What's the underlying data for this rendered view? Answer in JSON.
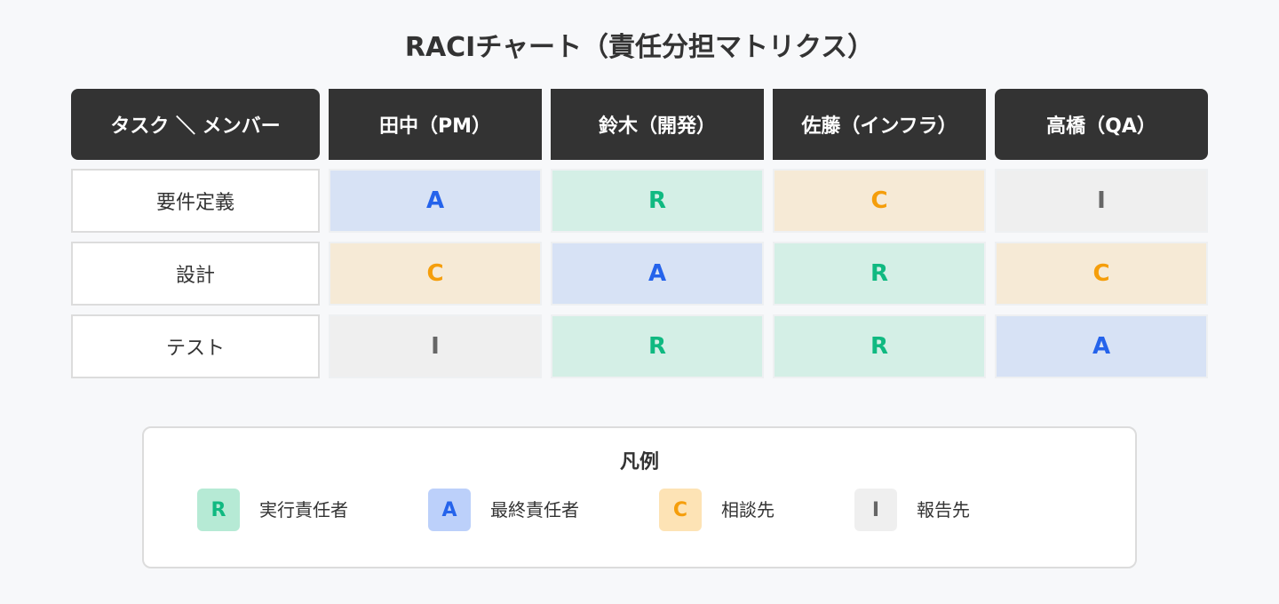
{
  "title": "RACIチャート（責任分担マトリクス）",
  "corner_header": "タスク ＼ メンバー",
  "members": [
    "田中（PM）",
    "鈴木（開発）",
    "佐藤（インフラ）",
    "高橋（QA）"
  ],
  "rows": [
    {
      "task": "要件定義",
      "values": [
        "A",
        "R",
        "C",
        "I"
      ]
    },
    {
      "task": "設計",
      "values": [
        "C",
        "A",
        "R",
        "C"
      ]
    },
    {
      "task": "テスト",
      "values": [
        "I",
        "R",
        "R",
        "A"
      ]
    }
  ],
  "legend": {
    "title": "凡例",
    "items": [
      {
        "code": "R",
        "label": "実行責任者"
      },
      {
        "code": "A",
        "label": "最終責任者"
      },
      {
        "code": "C",
        "label": "相談先"
      },
      {
        "code": "I",
        "label": "報告先"
      }
    ]
  },
  "colors": {
    "R": "#10b981",
    "A": "#2563eb",
    "C": "#f59e0b",
    "I": "#666666",
    "header": "#333333"
  }
}
